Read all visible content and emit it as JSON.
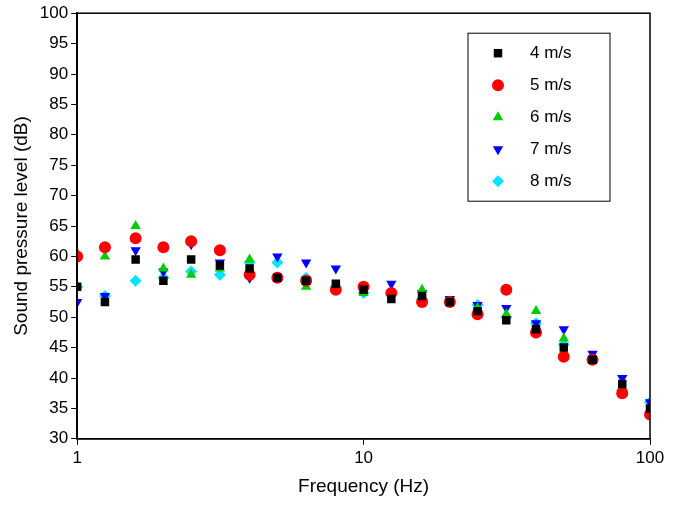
{
  "chart_data": {
    "type": "scatter",
    "x_label": "Frequency (Hz)",
    "y_label": "Sound pressure level (dB)",
    "log": "x",
    "grid": false,
    "legend": "upper right",
    "xlim": [
      1,
      100
    ],
    "xticks": [
      1,
      10,
      100
    ],
    "ylim": [
      30,
      100
    ],
    "yticks": [
      30,
      35,
      40,
      45,
      50,
      55,
      60,
      65,
      70,
      75,
      80,
      85,
      90,
      95,
      100
    ],
    "x": [
      1,
      1.25,
      1.6,
      2,
      2.5,
      3.15,
      4,
      5,
      6.3,
      8,
      10,
      12.5,
      16,
      20,
      25,
      31.5,
      40,
      50,
      63,
      80,
      100
    ],
    "series": [
      {
        "name": "4 m/s",
        "color": "#000000",
        "marker": "square",
        "values": [
          55,
          52.5,
          59.5,
          56,
          59.5,
          58.5,
          58,
          56.5,
          56,
          55.5,
          54.5,
          53,
          53.5,
          52.5,
          51,
          49.5,
          48,
          45,
          43,
          39,
          35
        ]
      },
      {
        "name": "5 m/s",
        "color": "#ff0000",
        "marker": "circle",
        "values": [
          60,
          61.5,
          63,
          61.5,
          62.5,
          61,
          57,
          56.5,
          56,
          54.5,
          55,
          54,
          52.5,
          52.5,
          50.5,
          54.5,
          47.5,
          43.5,
          43,
          37.5,
          34
        ]
      },
      {
        "name": "6 m/s",
        "color": "#00cc00",
        "marker": "triangle-up",
        "values": [
          60.5,
          60,
          65,
          58,
          57,
          58,
          59.5,
          56.5,
          55,
          55,
          54,
          54,
          54.5,
          52.5,
          51.5,
          50.5,
          51,
          46.5,
          43,
          38.5,
          34.5
        ]
      },
      {
        "name": "7 m/s",
        "color": "#0000ff",
        "marker": "triangle-down",
        "values": [
          52.5,
          53.5,
          61,
          57.5,
          62,
          59,
          56.5,
          60,
          59,
          58,
          55,
          55.5,
          54,
          53,
          52,
          51.5,
          49,
          48,
          44,
          40,
          36
        ]
      },
      {
        "name": "8 m/s",
        "color": "#00e5ff",
        "marker": "diamond",
        "values": [
          55,
          53.5,
          56,
          56.5,
          57.5,
          57,
          59,
          59,
          56.5,
          55,
          54,
          54,
          53,
          52.5,
          52,
          50,
          49,
          45.5,
          43,
          38,
          36
        ]
      }
    ]
  }
}
